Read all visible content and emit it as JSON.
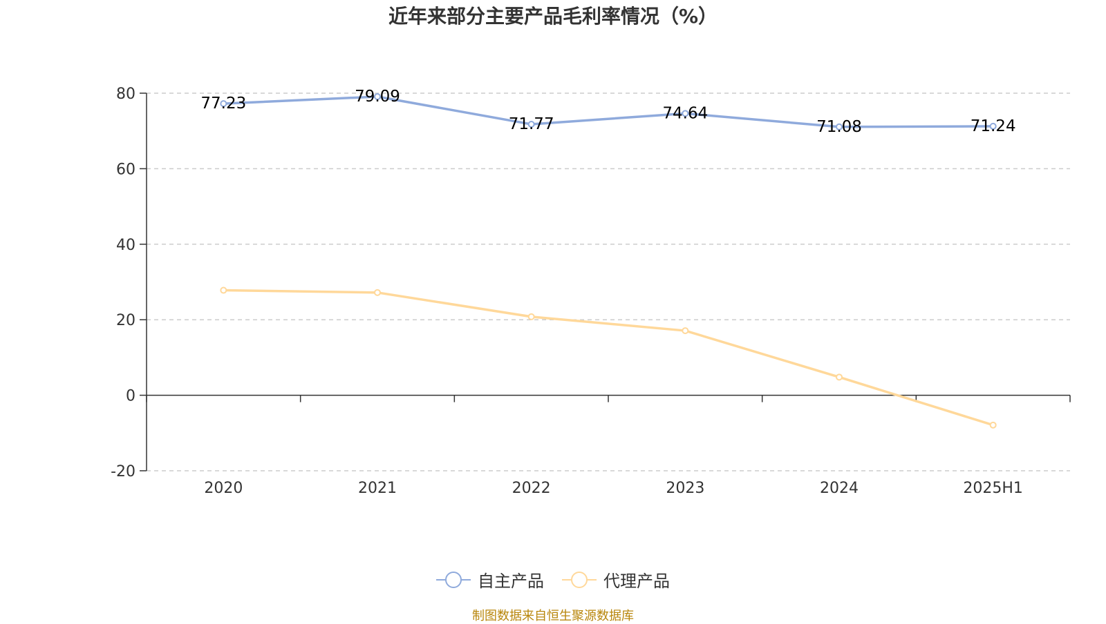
{
  "title": "近年来部分主要产品毛利率情况（%）",
  "source": "制图数据来自恒生聚源数据库",
  "colors": {
    "self": "#8faadc",
    "agency": "#ffd89a",
    "axis": "#333333",
    "grid": "#cccccc"
  },
  "chart_data": {
    "type": "line",
    "title": "近年来部分主要产品毛利率情况（%）",
    "categories": [
      "2020",
      "2021",
      "2022",
      "2023",
      "2024",
      "2025H1"
    ],
    "ylim": [
      -20,
      80
    ],
    "yticks": [
      80,
      60,
      40,
      20,
      0,
      -20
    ],
    "grid": true,
    "legend_position": "bottom-center",
    "series": [
      {
        "name": "自主产品",
        "values": [
          77.23,
          79.09,
          71.77,
          74.64,
          71.08,
          71.24
        ],
        "labels": [
          "77.23",
          "79.09",
          "71.77",
          "74.64",
          "71.08",
          "71.24"
        ],
        "show_labels": true
      },
      {
        "name": "代理产品",
        "values": [
          27.8,
          27.2,
          20.8,
          17.1,
          4.8,
          -7.9
        ],
        "show_labels": false
      }
    ]
  }
}
